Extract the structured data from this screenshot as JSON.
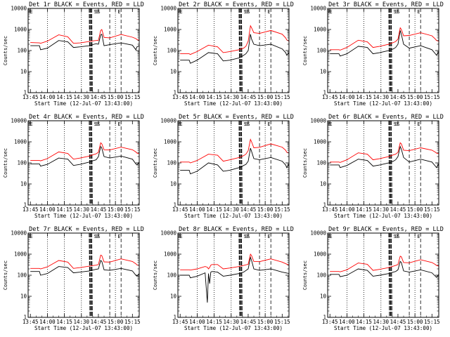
{
  "chart_data": {
    "type": "line",
    "layout": "3x3 grid",
    "xlabel": "Start Time (12-Jul-07 13:43:00)",
    "ylabel": "Counts/sec",
    "x_tick_labels": [
      "13:45",
      "14:00",
      "14:15",
      "14:30",
      "14:45",
      "15:00",
      "15:15"
    ],
    "x_tick_minutes": [
      0,
      15,
      30,
      45,
      60,
      75,
      90
    ],
    "xlim_minutes": [
      -2,
      96
    ],
    "y_scale": "log",
    "y_tick_labels": [
      "1",
      "10",
      "100",
      "1000",
      "10000"
    ],
    "y_tick_values": [
      1,
      10,
      100,
      1000,
      10000
    ],
    "ylim": [
      1,
      10000
    ],
    "series_colors": {
      "events": "#000000",
      "lld": "#ff0000"
    },
    "vertical_lines": [
      {
        "style": "dotted",
        "minute": 15
      },
      {
        "style": "dotted",
        "minute": 30
      },
      {
        "style": "dotted",
        "minute": 45
      },
      {
        "style": "dotted",
        "minute": 75
      },
      {
        "style": "dashed",
        "minute": 70
      },
      {
        "style": "dashed",
        "minute": 80
      }
    ],
    "markers": [
      "E",
      "E",
      "S",
      "S",
      "S",
      "E"
    ],
    "panels": [
      {
        "title": "Det 1r BLACK = Events, RED = LLD",
        "dashes": [
          52,
          53,
          54
        ],
        "x": [
          0,
          8,
          9,
          15,
          25,
          33,
          38,
          44,
          52,
          54,
          56,
          58,
          60,
          62,
          63,
          65,
          70,
          80,
          90,
          93,
          94,
          96
        ],
        "events": [
          170,
          170,
          110,
          130,
          300,
          260,
          140,
          150,
          170,
          180,
          200,
          210,
          200,
          550,
          600,
          170,
          190,
          230,
          180,
          110,
          150,
          170
        ],
        "lld": [
          240,
          230,
          220,
          280,
          560,
          450,
          220,
          230,
          270,
          280,
          290,
          300,
          310,
          900,
          1000,
          420,
          400,
          580,
          430,
          370,
          330,
          310
        ]
      },
      {
        "title": "Det 2r BLACK = Events, RED = LLD",
        "dashes": [
          52,
          53,
          54
        ],
        "x": [
          0,
          8,
          9,
          15,
          25,
          33,
          38,
          44,
          52,
          54,
          56,
          58,
          60,
          62,
          63,
          65,
          70,
          80,
          90,
          93,
          94,
          96
        ],
        "events": [
          35,
          35,
          25,
          35,
          80,
          70,
          32,
          35,
          45,
          50,
          60,
          70,
          100,
          600,
          350,
          200,
          170,
          200,
          120,
          80,
          60,
          80
        ],
        "lld": [
          70,
          70,
          65,
          90,
          180,
          150,
          80,
          90,
          110,
          120,
          130,
          160,
          280,
          1500,
          1200,
          700,
          650,
          900,
          600,
          400,
          320,
          280
        ]
      },
      {
        "title": "Det 3r BLACK = Events, RED = LLD",
        "dashes": [
          52,
          53,
          54
        ],
        "x": [
          0,
          8,
          9,
          15,
          25,
          33,
          38,
          44,
          52,
          54,
          56,
          58,
          60,
          62,
          63,
          65,
          70,
          80,
          90,
          93,
          94,
          96
        ],
        "events": [
          70,
          70,
          55,
          70,
          160,
          140,
          70,
          80,
          100,
          110,
          120,
          140,
          200,
          900,
          600,
          200,
          130,
          170,
          110,
          70,
          60,
          90
        ],
        "lld": [
          110,
          110,
          105,
          140,
          310,
          260,
          140,
          160,
          200,
          220,
          240,
          270,
          350,
          1200,
          1000,
          500,
          520,
          700,
          500,
          350,
          300,
          280
        ]
      },
      {
        "title": "Det 4r BLACK = Events, RED = LLD",
        "dashes": [
          52,
          53,
          54
        ],
        "x": [
          0,
          8,
          9,
          15,
          25,
          33,
          38,
          44,
          52,
          54,
          56,
          58,
          60,
          62,
          63,
          65,
          70,
          80,
          90,
          93,
          94,
          96
        ],
        "events": [
          90,
          90,
          70,
          85,
          170,
          150,
          75,
          85,
          110,
          120,
          130,
          140,
          200,
          600,
          500,
          200,
          170,
          210,
          150,
          90,
          80,
          110
        ],
        "lld": [
          130,
          130,
          125,
          160,
          330,
          280,
          150,
          170,
          210,
          230,
          250,
          270,
          320,
          900,
          800,
          420,
          410,
          560,
          420,
          330,
          290,
          270
        ]
      },
      {
        "title": "Det 5r BLACK = Events, RED = LLD",
        "dashes": [
          52,
          53,
          54
        ],
        "x": [
          0,
          8,
          9,
          15,
          25,
          33,
          38,
          44,
          52,
          54,
          56,
          58,
          60,
          62,
          63,
          65,
          70,
          80,
          90,
          93,
          94,
          96
        ],
        "events": [
          45,
          45,
          30,
          40,
          100,
          80,
          40,
          45,
          60,
          65,
          75,
          85,
          120,
          500,
          350,
          160,
          140,
          180,
          120,
          80,
          60,
          90
        ],
        "lld": [
          110,
          110,
          100,
          130,
          260,
          230,
          120,
          140,
          180,
          200,
          220,
          260,
          380,
          1300,
          1000,
          520,
          550,
          800,
          560,
          400,
          320,
          290
        ]
      },
      {
        "title": "Det 6r BLACK = Events, RED = LLD",
        "dashes": [
          52,
          53,
          54
        ],
        "x": [
          0,
          8,
          9,
          15,
          25,
          33,
          38,
          44,
          52,
          54,
          56,
          58,
          60,
          62,
          63,
          65,
          70,
          80,
          90,
          93,
          94,
          96
        ],
        "events": [
          80,
          80,
          60,
          75,
          150,
          130,
          70,
          80,
          100,
          110,
          120,
          140,
          200,
          600,
          450,
          180,
          110,
          150,
          110,
          70,
          60,
          90
        ],
        "lld": [
          110,
          110,
          105,
          140,
          300,
          260,
          140,
          160,
          200,
          220,
          240,
          260,
          320,
          900,
          800,
          400,
          380,
          520,
          400,
          320,
          290,
          270
        ]
      },
      {
        "title": "Det 7r BLACK = Events, RED = LLD",
        "dashes": [
          52,
          53,
          54
        ],
        "x": [
          0,
          8,
          9,
          15,
          25,
          33,
          38,
          44,
          52,
          54,
          56,
          58,
          60,
          62,
          63,
          65,
          70,
          80,
          90,
          93,
          94,
          96
        ],
        "events": [
          150,
          150,
          100,
          120,
          260,
          230,
          130,
          140,
          160,
          170,
          180,
          190,
          200,
          500,
          450,
          180,
          170,
          210,
          160,
          100,
          90,
          120
        ],
        "lld": [
          210,
          210,
          200,
          250,
          500,
          420,
          210,
          230,
          270,
          280,
          290,
          300,
          320,
          900,
          850,
          430,
          420,
          600,
          450,
          350,
          310,
          290
        ]
      },
      {
        "title": "Det 8r BLACK = Events, RED = LLD",
        "dashes": [
          52,
          53,
          54
        ],
        "x": [
          0,
          8,
          9,
          15,
          22,
          24,
          25,
          26,
          27,
          28,
          33,
          38,
          44,
          52,
          56,
          60,
          62,
          63,
          65,
          70,
          80,
          90,
          96
        ],
        "events": [
          100,
          100,
          75,
          90,
          130,
          5,
          120,
          40,
          140,
          150,
          140,
          90,
          100,
          120,
          140,
          200,
          700,
          500,
          200,
          170,
          200,
          140,
          120
        ],
        "lld": [
          180,
          180,
          175,
          200,
          260,
          240,
          200,
          230,
          300,
          320,
          320,
          200,
          220,
          260,
          290,
          330,
          1000,
          850,
          450,
          440,
          600,
          420,
          300
        ]
      },
      {
        "title": "Det 9r BLACK = Events, RED = LLD",
        "dashes": [
          52,
          53,
          54
        ],
        "x": [
          0,
          8,
          9,
          15,
          25,
          33,
          38,
          44,
          52,
          54,
          56,
          58,
          60,
          62,
          63,
          65,
          70,
          80,
          90,
          93,
          94,
          96
        ],
        "events": [
          110,
          110,
          85,
          100,
          200,
          170,
          90,
          100,
          120,
          130,
          140,
          150,
          180,
          450,
          400,
          160,
          140,
          180,
          130,
          90,
          80,
          110
        ],
        "lld": [
          150,
          150,
          145,
          180,
          380,
          330,
          170,
          190,
          230,
          250,
          270,
          290,
          320,
          800,
          750,
          400,
          390,
          540,
          400,
          320,
          290,
          270
        ]
      }
    ]
  }
}
